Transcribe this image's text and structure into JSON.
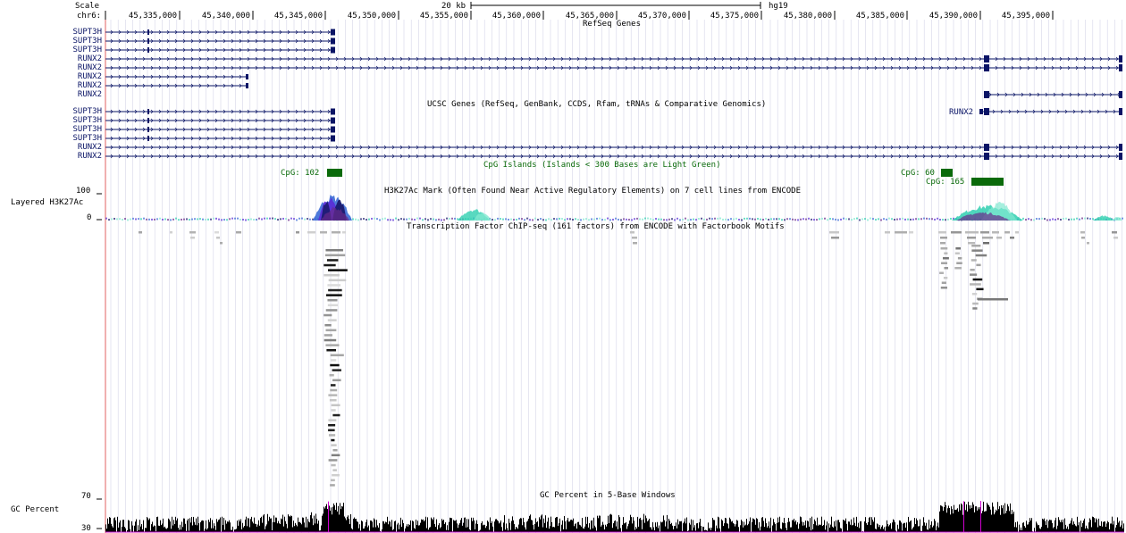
{
  "header": {
    "scale_label": "Scale",
    "scale_bar_label": "20 kb",
    "assembly": "hg19",
    "chrom_label": "chr6:"
  },
  "ruler": {
    "positions": [
      "45,335,000",
      "45,340,000",
      "45,345,000",
      "45,350,000",
      "45,355,000",
      "45,360,000",
      "45,365,000",
      "45,370,000",
      "45,375,000",
      "45,380,000",
      "45,385,000",
      "45,390,000",
      "45,395,000"
    ]
  },
  "refseq": {
    "title": "RefSeq Genes",
    "genes": [
      "SUPT3H",
      "SUPT3H",
      "SUPT3H",
      "RUNX2",
      "RUNX2",
      "RUNX2",
      "RUNX2",
      "RUNX2"
    ]
  },
  "ucsc": {
    "title": "UCSC Genes (RefSeq, GenBank, CCDS, Rfam, tRNAs & Comparative Genomics)",
    "inline_gene": "RUNX2",
    "genes": [
      "SUPT3H",
      "SUPT3H",
      "SUPT3H",
      "SUPT3H",
      "RUNX2",
      "RUNX2"
    ]
  },
  "cpg": {
    "title": "CpG Islands (Islands < 300 Bases are Light Green)",
    "islands": [
      "CpG: 102",
      "CpG: 60",
      "CpG: 165"
    ]
  },
  "h3k27ac": {
    "label": "Layered H3K27Ac",
    "max_label": "100",
    "min_label": "0",
    "title": "H3K27Ac Mark (Often Found Near Active Regulatory Elements) on 7 cell lines from ENCODE",
    "colors": [
      "#5a2fd6",
      "#1a1a6e",
      "#6a2b8a",
      "#2fcfb0",
      "#80e8d0",
      "#3a6ad6"
    ]
  },
  "tfbs": {
    "title": "Transcription Factor ChIP-seq (161 factors) from ENCODE with Factorbook Motifs"
  },
  "gc": {
    "label": "GC Percent",
    "max_label": "70",
    "min_label": "30",
    "title": "GC Percent in 5-Base Windows"
  },
  "colors": {
    "gene": "#0a1466",
    "cpg": "#0a6a0a",
    "grid": "#d6d6e8",
    "leftline": "#e06060",
    "gc_high": "#d000d0"
  }
}
